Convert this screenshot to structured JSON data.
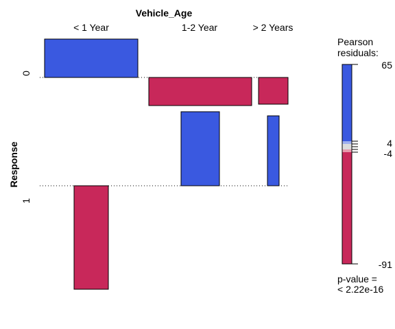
{
  "chart_data": {
    "type": "association",
    "title": "Vehicle_Age",
    "xlabel": "Vehicle_Age",
    "ylabel": "Response",
    "categories": [
      "< 1 Year",
      "1-2 Year",
      "> 2 Years"
    ],
    "response_levels": [
      "0",
      "1"
    ],
    "residual_colors": {
      "positive": "#3a59e0",
      "negative": "#c8285a"
    },
    "cells": [
      {
        "vehicle_age": "< 1 Year",
        "response": "0",
        "direction": "positive"
      },
      {
        "vehicle_age": "1-2 Year",
        "response": "0",
        "direction": "negative"
      },
      {
        "vehicle_age": "> 2 Years",
        "response": "0",
        "direction": "negative"
      },
      {
        "vehicle_age": "< 1 Year",
        "response": "1",
        "direction": "negative"
      },
      {
        "vehicle_age": "1-2 Year",
        "response": "1",
        "direction": "positive"
      },
      {
        "vehicle_age": "> 2 Years",
        "response": "1",
        "direction": "positive"
      }
    ],
    "legend": {
      "title": "Pearson\nresiduals:",
      "range": [
        -91,
        65
      ],
      "ticks": [
        "65",
        "4",
        "-4",
        "-91"
      ],
      "placement": "right",
      "pvalue_label": "p-value =",
      "pvalue": "< 2.22e-16"
    }
  }
}
